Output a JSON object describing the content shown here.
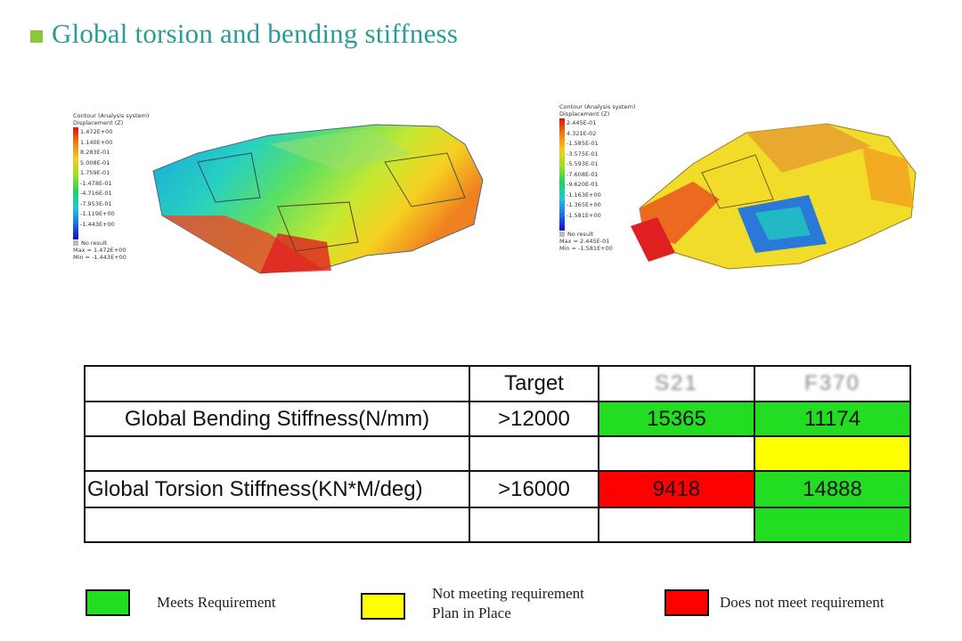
{
  "title": "Global torsion and bending stiffness",
  "colors": {
    "accent": "#2a9c96",
    "bullet": "#8cc63f",
    "meets": "#22dd22",
    "plan": "#ffff00",
    "fails": "#ff0000"
  },
  "figure_left": {
    "header": [
      "Contour (Analysis system)",
      "Displacement (Z)"
    ],
    "scale": [
      "1.472E+00",
      "1.140E+00",
      "8.283E-01",
      "5.008E-01",
      "1.759E-01",
      "-1.478E-01",
      "-4.716E-01",
      "-7.953E-01",
      "-1.119E+00",
      "-1.443E+00"
    ],
    "no_result": "No result",
    "max": "Max = 1.472E+00",
    "min": "Min = -1.443E+00"
  },
  "figure_right": {
    "header": [
      "Contour (Analysis system)",
      "Displacement (Z)"
    ],
    "scale": [
      "2.445E-01",
      "4.321E-02",
      "-1.585E-01",
      "-3.575E-01",
      "-5.593E-01",
      "-7.608E-01",
      "-9.620E-01",
      "-1.163E+00",
      "-1.365E+00",
      "-1.581E+00"
    ],
    "no_result": "No result",
    "max": "Max = 2.445E-01",
    "min": "Min = -1.581E+00"
  },
  "table": {
    "header": {
      "blank": "",
      "target": "Target",
      "col_a": "S21",
      "col_b": "F370"
    },
    "rows": [
      {
        "label": "Global Bending Stiffness(N/mm)",
        "target": ">12000",
        "a": "15365",
        "b": "11174"
      },
      {
        "label": "",
        "target": "",
        "a": "",
        "b": ""
      },
      {
        "label": "Global Torsion Stiffness(KN*M/deg)",
        "target": ">16000",
        "a": "9418",
        "b": "14888"
      },
      {
        "label": "",
        "target": "",
        "a": "",
        "b": ""
      }
    ]
  },
  "key": {
    "meets": "Meets Requirement",
    "plan_line1": "Not meeting requirement",
    "plan_line2": "Plan in Place",
    "fails": "Does not meet requirement"
  }
}
